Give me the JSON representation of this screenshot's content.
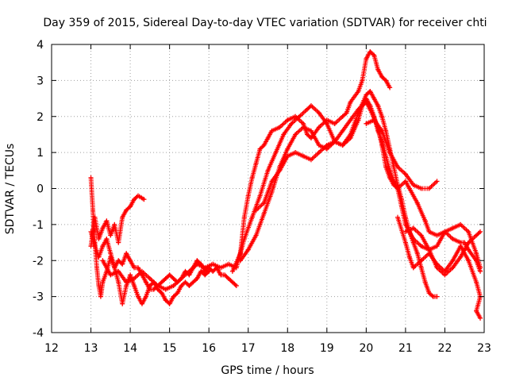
{
  "chart_data": {
    "type": "scatter",
    "title": "Day 359 of 2015, Sidereal Day-to-day VTEC variation (SDTVAR) for receiver chti",
    "xlabel": "GPS time / hours",
    "ylabel": "SDTVAR / TECUs",
    "xlim": [
      12,
      23
    ],
    "ylim": [
      -4,
      4
    ],
    "xticks": [
      "12",
      "13",
      "14",
      "15",
      "16",
      "17",
      "18",
      "19",
      "20",
      "21",
      "22",
      "23"
    ],
    "yticks": [
      "-4",
      "-3",
      "-2",
      "-1",
      "0",
      "1",
      "2",
      "3",
      "4"
    ],
    "grid": true,
    "marker": "+",
    "color": "#ff0000",
    "series": [
      {
        "name": "trace-1",
        "points": [
          [
            13.0,
            -1.6
          ],
          [
            13.1,
            -0.8
          ],
          [
            13.2,
            -1.4
          ],
          [
            13.3,
            -1.1
          ],
          [
            13.4,
            -0.9
          ],
          [
            13.5,
            -1.3
          ],
          [
            13.6,
            -1.0
          ],
          [
            13.7,
            -1.5
          ],
          [
            13.8,
            -0.8
          ],
          [
            13.9,
            -0.6
          ],
          [
            14.0,
            -0.5
          ],
          [
            14.1,
            -0.3
          ],
          [
            14.2,
            -0.2
          ],
          [
            14.35,
            -0.3
          ]
        ]
      },
      {
        "name": "trace-2",
        "points": [
          [
            13.0,
            0.3
          ],
          [
            13.05,
            -0.6
          ],
          [
            13.1,
            -1.5
          ],
          [
            13.15,
            -2.2
          ],
          [
            13.2,
            -2.7
          ],
          [
            13.25,
            -3.0
          ],
          [
            13.3,
            -2.6
          ],
          [
            13.4,
            -2.3
          ],
          [
            13.5,
            -1.9
          ],
          [
            13.6,
            -2.2
          ],
          [
            13.7,
            -2.6
          ],
          [
            13.8,
            -3.2
          ],
          [
            13.9,
            -2.7
          ],
          [
            14.0,
            -2.4
          ],
          [
            14.1,
            -2.7
          ],
          [
            14.2,
            -3.0
          ],
          [
            14.3,
            -3.2
          ],
          [
            14.4,
            -3.0
          ],
          [
            14.5,
            -2.7
          ],
          [
            14.6,
            -2.6
          ],
          [
            14.7,
            -2.8
          ],
          [
            14.8,
            -2.9
          ],
          [
            14.9,
            -3.1
          ],
          [
            15.0,
            -3.2
          ],
          [
            15.1,
            -3.0
          ],
          [
            15.2,
            -2.9
          ],
          [
            15.3,
            -2.7
          ],
          [
            15.4,
            -2.6
          ],
          [
            15.5,
            -2.7
          ],
          [
            15.6,
            -2.6
          ],
          [
            15.7,
            -2.5
          ],
          [
            15.8,
            -2.3
          ],
          [
            15.9,
            -2.4
          ],
          [
            16.0,
            -2.3
          ]
        ]
      },
      {
        "name": "trace-3",
        "points": [
          [
            13.0,
            -1.2
          ],
          [
            13.1,
            -1.6
          ],
          [
            13.2,
            -1.9
          ],
          [
            13.3,
            -1.6
          ],
          [
            13.4,
            -1.4
          ],
          [
            13.5,
            -1.8
          ],
          [
            13.6,
            -2.2
          ],
          [
            13.7,
            -2.0
          ],
          [
            13.8,
            -2.1
          ],
          [
            13.9,
            -1.8
          ],
          [
            14.0,
            -2.0
          ],
          [
            14.1,
            -2.2
          ],
          [
            14.2,
            -2.2
          ],
          [
            14.3,
            -2.4
          ],
          [
            14.4,
            -2.6
          ],
          [
            14.5,
            -2.8
          ],
          [
            14.6,
            -2.8
          ],
          [
            14.7,
            -2.7
          ],
          [
            14.8,
            -2.6
          ],
          [
            14.9,
            -2.5
          ],
          [
            15.0,
            -2.4
          ],
          [
            15.1,
            -2.5
          ],
          [
            15.2,
            -2.6
          ],
          [
            15.3,
            -2.5
          ],
          [
            15.4,
            -2.3
          ],
          [
            15.5,
            -2.4
          ],
          [
            15.6,
            -2.2
          ],
          [
            15.7,
            -2.0
          ],
          [
            15.8,
            -2.1
          ],
          [
            15.9,
            -2.3
          ],
          [
            16.0,
            -2.2
          ],
          [
            16.1,
            -2.3
          ],
          [
            16.2,
            -2.2
          ],
          [
            16.3,
            -2.4
          ],
          [
            16.4,
            -2.4
          ],
          [
            16.5,
            -2.5
          ],
          [
            16.6,
            -2.6
          ],
          [
            16.7,
            -2.7
          ]
        ]
      },
      {
        "name": "trace-4",
        "points": [
          [
            13.3,
            -2.0
          ],
          [
            13.5,
            -2.4
          ],
          [
            13.7,
            -2.3
          ],
          [
            13.9,
            -2.6
          ],
          [
            14.1,
            -2.5
          ],
          [
            14.3,
            -2.3
          ],
          [
            14.5,
            -2.5
          ],
          [
            14.7,
            -2.7
          ],
          [
            14.9,
            -2.8
          ],
          [
            15.1,
            -2.7
          ],
          [
            15.3,
            -2.5
          ],
          [
            15.5,
            -2.3
          ],
          [
            15.7,
            -2.1
          ],
          [
            15.9,
            -2.2
          ],
          [
            16.1,
            -2.1
          ],
          [
            16.3,
            -2.2
          ],
          [
            16.5,
            -2.1
          ],
          [
            16.7,
            -2.2
          ],
          [
            16.9,
            -1.4
          ],
          [
            17.1,
            -0.8
          ],
          [
            17.3,
            -0.2
          ],
          [
            17.5,
            0.5
          ],
          [
            17.7,
            1.0
          ],
          [
            17.9,
            1.5
          ],
          [
            18.1,
            1.8
          ],
          [
            18.3,
            2.0
          ],
          [
            18.5,
            2.2
          ],
          [
            18.6,
            2.3
          ],
          [
            18.8,
            2.1
          ],
          [
            19.0,
            1.8
          ],
          [
            19.2,
            1.3
          ],
          [
            19.4,
            1.2
          ],
          [
            19.6,
            1.4
          ],
          [
            19.8,
            1.9
          ],
          [
            19.9,
            2.3
          ],
          [
            20.0,
            2.5
          ],
          [
            20.1,
            2.3
          ],
          [
            20.2,
            2.0
          ],
          [
            20.3,
            1.6
          ],
          [
            20.4,
            1.3
          ],
          [
            20.5,
            0.9
          ],
          [
            20.6,
            0.5
          ],
          [
            20.7,
            0.2
          ],
          [
            20.8,
            0.0
          ],
          [
            20.9,
            -0.5
          ],
          [
            21.0,
            -1.0
          ],
          [
            21.2,
            -1.4
          ],
          [
            21.4,
            -1.6
          ],
          [
            21.6,
            -1.7
          ],
          [
            21.8,
            -1.6
          ],
          [
            22.0,
            -1.2
          ],
          [
            22.2,
            -1.1
          ],
          [
            22.4,
            -1.0
          ],
          [
            22.6,
            -1.2
          ],
          [
            22.8,
            -1.8
          ],
          [
            22.9,
            -2.2
          ]
        ]
      },
      {
        "name": "trace-5",
        "points": [
          [
            16.6,
            -2.3
          ],
          [
            16.8,
            -1.8
          ],
          [
            16.9,
            -0.8
          ],
          [
            17.0,
            -0.2
          ],
          [
            17.1,
            0.3
          ],
          [
            17.2,
            0.7
          ],
          [
            17.3,
            1.1
          ],
          [
            17.4,
            1.2
          ],
          [
            17.5,
            1.4
          ],
          [
            17.6,
            1.6
          ],
          [
            17.8,
            1.7
          ],
          [
            18.0,
            1.9
          ],
          [
            18.2,
            2.0
          ],
          [
            18.4,
            1.8
          ],
          [
            18.5,
            1.5
          ],
          [
            18.6,
            1.4
          ],
          [
            18.8,
            1.7
          ],
          [
            19.0,
            1.9
          ],
          [
            19.2,
            1.8
          ],
          [
            19.4,
            2.0
          ],
          [
            19.5,
            2.1
          ],
          [
            19.6,
            2.4
          ],
          [
            19.8,
            2.7
          ],
          [
            19.9,
            3.0
          ],
          [
            20.0,
            3.6
          ],
          [
            20.1,
            3.8
          ],
          [
            20.2,
            3.7
          ],
          [
            20.3,
            3.3
          ],
          [
            20.4,
            3.1
          ],
          [
            20.5,
            3.0
          ],
          [
            20.6,
            2.8
          ]
        ]
      },
      {
        "name": "trace-6",
        "points": [
          [
            16.8,
            -2.0
          ],
          [
            17.0,
            -1.7
          ],
          [
            17.2,
            -1.3
          ],
          [
            17.4,
            -0.7
          ],
          [
            17.6,
            -0.1
          ],
          [
            17.8,
            0.6
          ],
          [
            18.0,
            1.1
          ],
          [
            18.2,
            1.5
          ],
          [
            18.4,
            1.7
          ],
          [
            18.6,
            1.6
          ],
          [
            18.8,
            1.2
          ],
          [
            19.0,
            1.1
          ],
          [
            19.2,
            1.3
          ],
          [
            19.4,
            1.6
          ],
          [
            19.6,
            1.9
          ],
          [
            19.8,
            2.2
          ],
          [
            20.0,
            2.4
          ],
          [
            20.1,
            2.2
          ],
          [
            20.3,
            1.7
          ],
          [
            20.4,
            1.2
          ],
          [
            20.5,
            0.6
          ],
          [
            20.6,
            0.3
          ],
          [
            20.7,
            0.1
          ],
          [
            20.8,
            0.0
          ],
          [
            21.0,
            0.2
          ],
          [
            21.1,
            0.0
          ],
          [
            21.3,
            -0.4
          ],
          [
            21.5,
            -0.9
          ],
          [
            21.6,
            -1.2
          ],
          [
            21.8,
            -1.3
          ],
          [
            22.0,
            -1.2
          ],
          [
            22.2,
            -1.4
          ],
          [
            22.4,
            -1.5
          ],
          [
            22.5,
            -1.5
          ],
          [
            22.6,
            -1.7
          ],
          [
            22.8,
            -2.0
          ],
          [
            22.9,
            -2.3
          ]
        ]
      },
      {
        "name": "trace-7",
        "points": [
          [
            17.2,
            -0.6
          ],
          [
            17.4,
            -0.4
          ],
          [
            17.6,
            0.2
          ],
          [
            17.8,
            0.5
          ],
          [
            18.0,
            0.9
          ],
          [
            18.2,
            1.0
          ],
          [
            18.4,
            0.9
          ],
          [
            18.6,
            0.8
          ],
          [
            18.8,
            1.0
          ],
          [
            19.0,
            1.2
          ],
          [
            19.2,
            1.3
          ],
          [
            19.4,
            1.2
          ],
          [
            19.6,
            1.5
          ],
          [
            19.8,
            2.1
          ],
          [
            20.0,
            2.6
          ],
          [
            20.1,
            2.7
          ],
          [
            20.2,
            2.5
          ],
          [
            20.3,
            2.3
          ],
          [
            20.4,
            2.0
          ],
          [
            20.5,
            1.6
          ],
          [
            20.6,
            1.1
          ],
          [
            20.7,
            0.6
          ],
          [
            20.8,
            0.1
          ],
          [
            20.9,
            -0.3
          ],
          [
            21.0,
            -0.8
          ],
          [
            21.1,
            -1.2
          ],
          [
            21.2,
            -1.5
          ],
          [
            21.3,
            -1.8
          ],
          [
            21.4,
            -2.2
          ],
          [
            21.5,
            -2.6
          ],
          [
            21.6,
            -2.9
          ],
          [
            21.7,
            -3.0
          ],
          [
            21.8,
            -3.0
          ]
        ]
      },
      {
        "name": "trace-8",
        "points": [
          [
            20.0,
            1.8
          ],
          [
            20.2,
            1.9
          ],
          [
            20.4,
            1.6
          ],
          [
            20.6,
            1.0
          ],
          [
            20.8,
            0.6
          ],
          [
            21.0,
            0.4
          ],
          [
            21.2,
            0.1
          ],
          [
            21.4,
            0.0
          ],
          [
            21.6,
            0.0
          ],
          [
            21.8,
            0.2
          ]
        ]
      },
      {
        "name": "trace-9",
        "points": [
          [
            20.8,
            -0.8
          ],
          [
            21.0,
            -1.5
          ],
          [
            21.1,
            -1.9
          ],
          [
            21.2,
            -2.2
          ],
          [
            21.4,
            -2.0
          ],
          [
            21.6,
            -1.8
          ],
          [
            21.8,
            -2.1
          ],
          [
            22.0,
            -2.3
          ],
          [
            22.2,
            -2.0
          ],
          [
            22.4,
            -1.6
          ],
          [
            22.6,
            -2.0
          ],
          [
            22.8,
            -2.6
          ],
          [
            22.9,
            -3.0
          ],
          [
            22.8,
            -3.4
          ],
          [
            22.9,
            -3.6
          ]
        ]
      },
      {
        "name": "trace-10",
        "points": [
          [
            21.0,
            -1.2
          ],
          [
            21.2,
            -1.1
          ],
          [
            21.4,
            -1.3
          ],
          [
            21.6,
            -1.7
          ],
          [
            21.8,
            -2.2
          ],
          [
            22.0,
            -2.4
          ],
          [
            22.2,
            -2.2
          ],
          [
            22.4,
            -1.9
          ],
          [
            22.6,
            -1.5
          ],
          [
            22.8,
            -1.3
          ],
          [
            22.9,
            -1.2
          ]
        ]
      }
    ]
  }
}
